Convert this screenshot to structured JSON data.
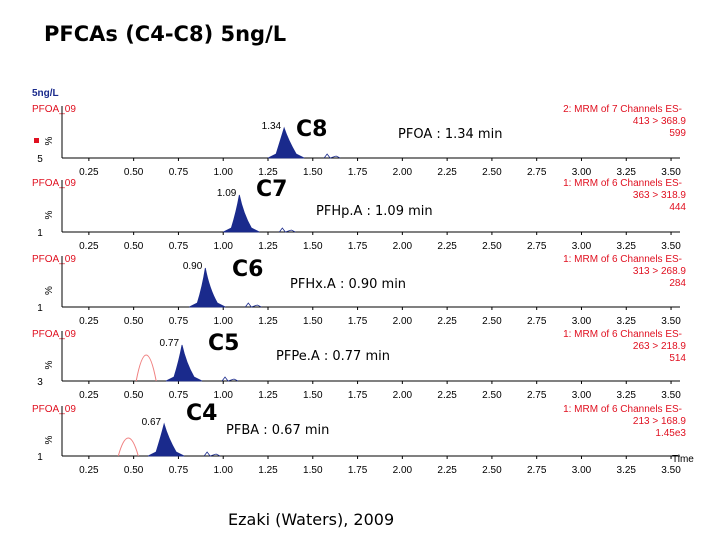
{
  "page": {
    "title": "PFCAs (C4-C8) 5ng/L",
    "footer": "Ezaki (Waters), 2009"
  },
  "colors": {
    "trace_fill": "#1a2a8c",
    "secondary_trace": "#f08080",
    "header_text": "#e01020"
  },
  "chart_data": {
    "type": "area",
    "x_ticks": [
      "0.25",
      "0.50",
      "0.75",
      "1.00",
      "1.25",
      "1.50",
      "1.75",
      "2.00",
      "2.25",
      "2.50",
      "2.75",
      "3.00",
      "3.25",
      "3.50"
    ],
    "xlim": [
      0.1,
      3.55
    ],
    "x_axis_label": "Time",
    "header_label": "5ng/L",
    "panels": [
      {
        "sample": "PFOA_09",
        "peak_rt": 1.34,
        "peak_label": "1.34",
        "tag": "C8",
        "annotation": "PFOA : 1.34 min",
        "channel": "2: MRM of 7 Channels ES-",
        "transition": "413 > 368.9",
        "intensity": "599",
        "y_ticks": [
          "%",
          "5"
        ],
        "marker": true
      },
      {
        "sample": "PFOA_09",
        "peak_rt": 1.09,
        "peak_label": "1.09",
        "tag": "C7",
        "annotation": "PFHp.A : 1.09 min",
        "channel": "1: MRM of 6 Channels ES-",
        "transition": "363 > 318.9",
        "intensity": "444",
        "y_ticks": [
          "%",
          "1"
        ]
      },
      {
        "sample": "PFOA_09",
        "peak_rt": 0.9,
        "peak_label": "0.90",
        "tag": "C6",
        "annotation": "PFHx.A : 0.90 min",
        "channel": "1: MRM of 6 Channels ES-",
        "transition": "313 > 268.9",
        "intensity": "284",
        "y_ticks": [
          "%",
          "1"
        ]
      },
      {
        "sample": "PFOA_09",
        "peak_rt": 0.77,
        "peak_label": "0.77",
        "tag": "C5",
        "annotation": "PFPe.A : 0.77 min",
        "channel": "1: MRM of 6 Channels ES-",
        "transition": "263 > 218.9",
        "intensity": "514",
        "y_ticks": [
          "%",
          "3"
        ]
      },
      {
        "sample": "PFOA_09",
        "peak_rt": 0.67,
        "peak_label": "0.67",
        "tag": "C4",
        "annotation": "PFBA : 0.67 min",
        "channel": "1: MRM of 6 Channels ES-",
        "transition": "213 > 168.9",
        "intensity": "1.45e3",
        "y_ticks": [
          "%",
          "1"
        ],
        "has_time_label": true
      }
    ]
  }
}
